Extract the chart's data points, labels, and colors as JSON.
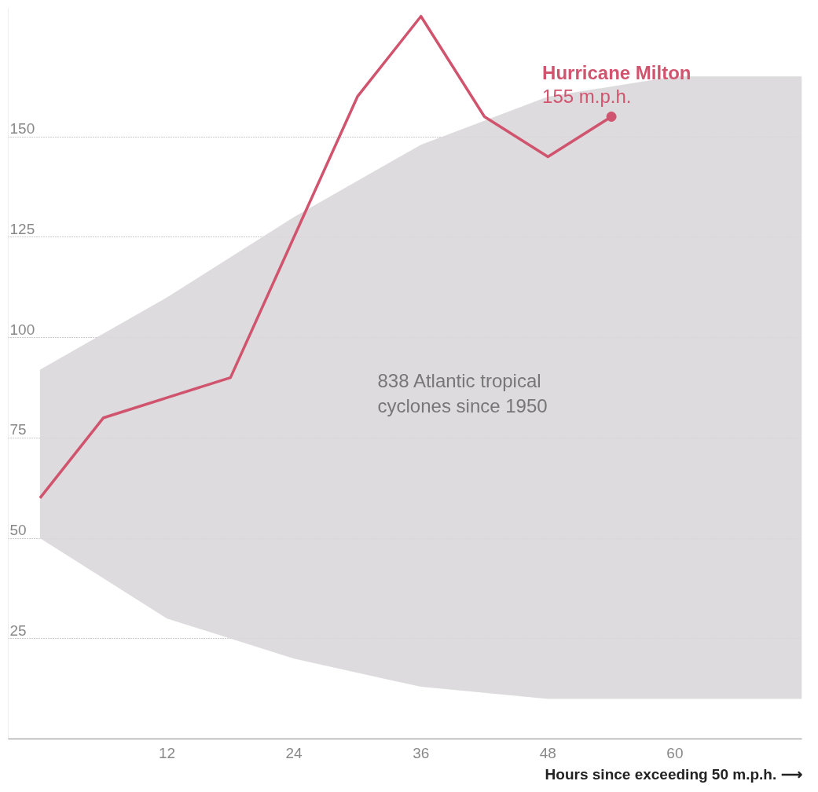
{
  "chart_data": {
    "type": "line",
    "xlabel": "Hours since exceeding 50 m.p.h. ⟶",
    "xlim": [
      -3,
      72
    ],
    "ylim": [
      0,
      182
    ],
    "xticks": [
      12,
      24,
      36,
      48,
      60
    ],
    "yticks": [
      25,
      50,
      75,
      100,
      125,
      150
    ],
    "grid": "y",
    "series": [
      {
        "color": "#d9d7d9",
        "x": [
          0,
          12,
          24,
          36,
          48,
          60,
          72
        ],
        "values": [
          null,
          null,
          null,
          null,
          null,
          null,
          null
        ],
        "lower": [
          50,
          30,
          20,
          13,
          10,
          10,
          10
        ],
        "upper": [
          92,
          110,
          130,
          148,
          160,
          165,
          165
        ]
      },
      {
        "name": "Hurricane Milton",
        "color": "#d0546e",
        "x": [
          0,
          6,
          12,
          18,
          24,
          30,
          36,
          42,
          48,
          54
        ],
        "values": [
          60,
          80,
          85,
          90,
          125,
          160,
          180,
          155,
          145,
          155
        ]
      }
    ],
    "annotations": [
      {
        "text": "155 m.p.h.",
        "x": 54,
        "y": 155
      },
      "838 Atlantic tropical\ncyclones since 1950"
    ]
  }
}
